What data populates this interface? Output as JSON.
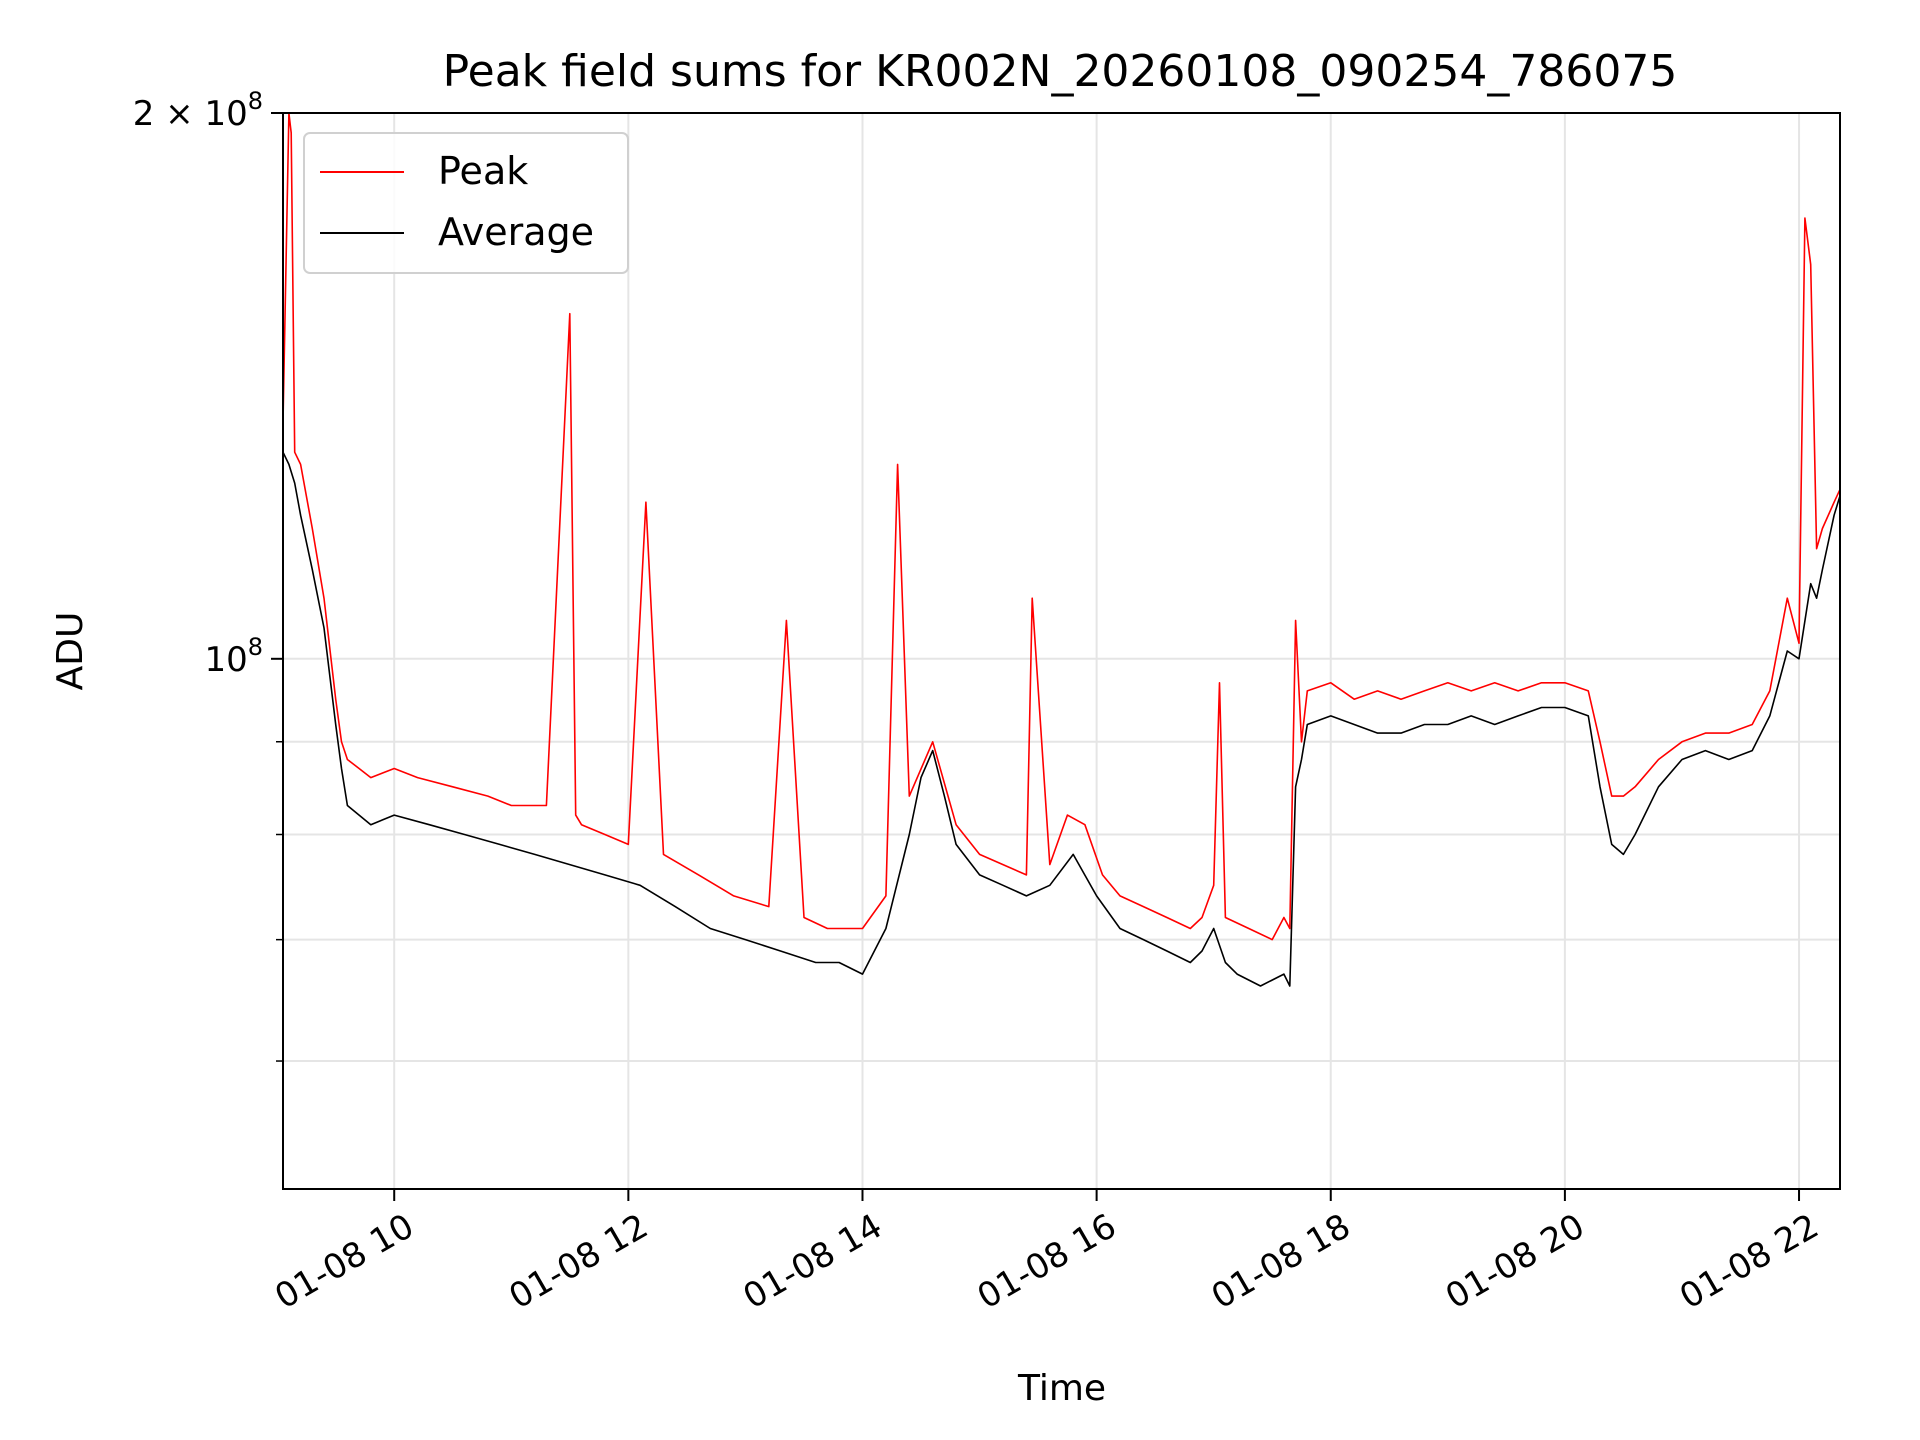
{
  "chart_data": {
    "type": "line",
    "title": "Peak field sums for KR002N_20260108_090254_786075",
    "xlabel": "Time",
    "ylabel": "ADU",
    "yscale": "log",
    "ylim": [
      51000000,
      200000000
    ],
    "xlim_hours": [
      9.05,
      22.35
    ],
    "grid": true,
    "legend_placement": "upper-left",
    "x_ticks": [
      {
        "hour": 10,
        "label": "01-08 10"
      },
      {
        "hour": 12,
        "label": "01-08 12"
      },
      {
        "hour": 14,
        "label": "01-08 14"
      },
      {
        "hour": 16,
        "label": "01-08 16"
      },
      {
        "hour": 18,
        "label": "01-08 18"
      },
      {
        "hour": 20,
        "label": "01-08 20"
      },
      {
        "hour": 22,
        "label": "01-08 22"
      }
    ],
    "y_major_ticks": [
      {
        "value": 100000000,
        "base": "10",
        "exp": "8",
        "prefix": ""
      },
      {
        "value": 200000000,
        "base": "10",
        "exp": "8",
        "prefix": "2 × "
      }
    ],
    "y_minor_ticks": [
      60000000,
      70000000,
      80000000,
      90000000
    ],
    "series": [
      {
        "name": "Peak",
        "color": "#ff0000",
        "x_hours": [
          9.05,
          9.1,
          9.12,
          9.15,
          9.2,
          9.3,
          9.4,
          9.5,
          9.55,
          9.6,
          9.7,
          9.8,
          10.0,
          10.2,
          10.5,
          10.8,
          11.0,
          11.3,
          11.5,
          11.55,
          11.6,
          11.8,
          12.0,
          12.15,
          12.3,
          12.6,
          12.9,
          13.2,
          13.35,
          13.5,
          13.7,
          13.85,
          14.0,
          14.2,
          14.3,
          14.4,
          14.6,
          14.8,
          15.0,
          15.2,
          15.4,
          15.45,
          15.6,
          15.75,
          15.9,
          16.05,
          16.2,
          16.4,
          16.6,
          16.8,
          16.9,
          17.0,
          17.05,
          17.1,
          17.3,
          17.5,
          17.6,
          17.65,
          17.7,
          17.75,
          17.8,
          18.0,
          18.2,
          18.4,
          18.6,
          18.8,
          19.0,
          19.2,
          19.4,
          19.6,
          19.8,
          20.0,
          20.2,
          20.3,
          20.4,
          20.5,
          20.6,
          20.8,
          21.0,
          21.2,
          21.4,
          21.6,
          21.75,
          21.9,
          22.0,
          22.05,
          22.1,
          22.15,
          22.2,
          22.3,
          22.35
        ],
        "values": [
          135000000,
          200000000,
          195000000,
          130000000,
          128000000,
          118000000,
          108000000,
          95000000,
          90000000,
          88000000,
          87000000,
          86000000,
          87000000,
          86000000,
          85000000,
          84000000,
          83000000,
          83000000,
          155000000,
          82000000,
          81000000,
          80000000,
          79000000,
          122000000,
          78000000,
          76000000,
          74000000,
          73000000,
          105000000,
          72000000,
          71000000,
          71000000,
          71000000,
          74000000,
          128000000,
          84000000,
          90000000,
          81000000,
          78000000,
          77000000,
          76000000,
          108000000,
          77000000,
          82000000,
          81000000,
          76000000,
          74000000,
          73000000,
          72000000,
          71000000,
          72000000,
          75000000,
          97000000,
          72000000,
          71000000,
          70000000,
          72000000,
          71000000,
          105000000,
          90000000,
          96000000,
          97000000,
          95000000,
          96000000,
          95000000,
          96000000,
          97000000,
          96000000,
          97000000,
          96000000,
          97000000,
          97000000,
          96000000,
          90000000,
          84000000,
          84000000,
          85000000,
          88000000,
          90000000,
          91000000,
          91000000,
          92000000,
          96000000,
          108000000,
          102000000,
          175000000,
          165000000,
          115000000,
          118000000,
          122000000,
          124000000
        ]
      },
      {
        "name": "Average",
        "color": "#000000",
        "x_hours": [
          9.05,
          9.1,
          9.15,
          9.2,
          9.3,
          9.4,
          9.5,
          9.55,
          9.6,
          9.7,
          9.8,
          10.0,
          10.3,
          10.6,
          10.9,
          11.2,
          11.5,
          11.8,
          12.1,
          12.4,
          12.7,
          13.0,
          13.3,
          13.6,
          13.8,
          14.0,
          14.2,
          14.4,
          14.5,
          14.6,
          14.7,
          14.8,
          15.0,
          15.2,
          15.4,
          15.6,
          15.8,
          16.0,
          16.2,
          16.4,
          16.6,
          16.8,
          16.9,
          17.0,
          17.1,
          17.2,
          17.4,
          17.6,
          17.65,
          17.7,
          17.75,
          17.8,
          18.0,
          18.2,
          18.4,
          18.6,
          18.8,
          19.0,
          19.2,
          19.4,
          19.6,
          19.8,
          20.0,
          20.2,
          20.3,
          20.4,
          20.5,
          20.6,
          20.8,
          21.0,
          21.2,
          21.4,
          21.6,
          21.75,
          21.9,
          22.0,
          22.1,
          22.15,
          22.2,
          22.3,
          22.35
        ],
        "values": [
          130000000,
          128000000,
          125000000,
          120000000,
          112000000,
          104000000,
          92000000,
          87000000,
          83000000,
          82000000,
          81000000,
          82000000,
          81000000,
          80000000,
          79000000,
          78000000,
          77000000,
          76000000,
          75000000,
          73000000,
          71000000,
          70000000,
          69000000,
          68000000,
          68000000,
          67000000,
          71000000,
          80000000,
          86000000,
          89000000,
          84000000,
          79000000,
          76000000,
          75000000,
          74000000,
          75000000,
          78000000,
          74000000,
          71000000,
          70000000,
          69000000,
          68000000,
          69000000,
          71000000,
          68000000,
          67000000,
          66000000,
          67000000,
          66000000,
          85000000,
          88000000,
          92000000,
          93000000,
          92000000,
          91000000,
          91000000,
          92000000,
          92000000,
          93000000,
          92000000,
          93000000,
          94000000,
          94000000,
          93000000,
          85000000,
          79000000,
          78000000,
          80000000,
          85000000,
          88000000,
          89000000,
          88000000,
          89000000,
          93000000,
          101000000,
          100000000,
          110000000,
          108000000,
          112000000,
          120000000,
          123000000
        ]
      }
    ]
  }
}
